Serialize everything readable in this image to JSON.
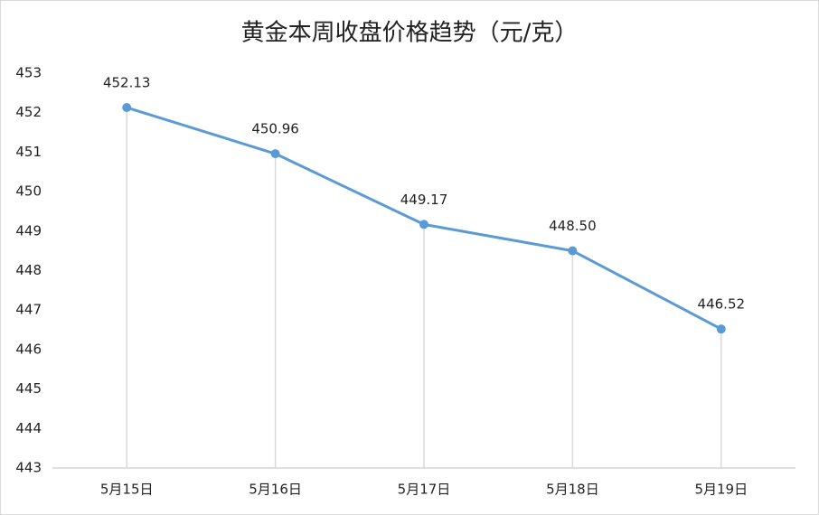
{
  "chart_data": {
    "type": "line",
    "title": "黄金本周收盘价格趋势（元/克）",
    "categories": [
      "5月15日",
      "5月16日",
      "5月17日",
      "5月18日",
      "5月19日"
    ],
    "values": [
      452.13,
      450.96,
      449.17,
      448.5,
      446.52
    ],
    "value_labels": [
      "452.13",
      "450.96",
      "449.17",
      "448.50",
      "446.52"
    ],
    "color": "#5b9bd5",
    "ylim": [
      443,
      453
    ],
    "yticks": [
      443,
      444,
      445,
      446,
      447,
      448,
      449,
      450,
      451,
      452,
      453
    ],
    "drop_lines": true
  }
}
